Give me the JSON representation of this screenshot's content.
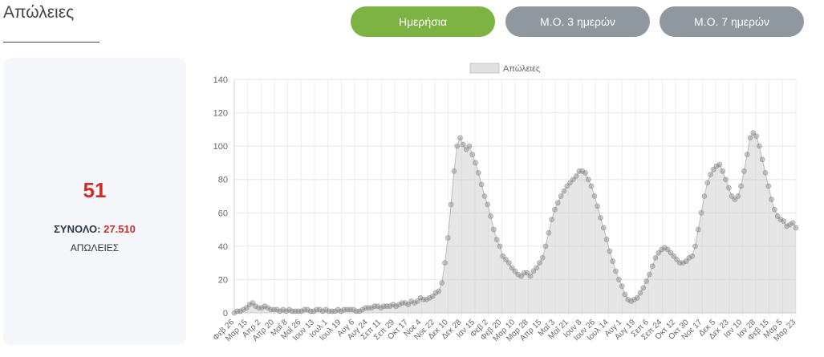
{
  "header": {
    "title": "Απώλειες"
  },
  "buttons": {
    "daily": "Ημερήσια",
    "ma3": "Μ.Ο. 3 ημερών",
    "ma7": "Μ.Ο. 7 ημερών"
  },
  "summary": {
    "value": "51",
    "total_label": "ΣΥΝΟΛΟ:",
    "total_value": "27.510",
    "sub_label": "ΑΠΩΛΕΙΕΣ"
  },
  "colors": {
    "active_button": "#7cb342",
    "inactive_button": "#8f979f",
    "highlight": "#c9302c"
  },
  "chart_data": {
    "type": "line",
    "title": "",
    "xlabel": "",
    "ylabel": "",
    "legend": {
      "label": "Απώλειες",
      "position": "top"
    },
    "ylim": [
      0,
      140
    ],
    "yticks": [
      0,
      20,
      40,
      60,
      80,
      100,
      120,
      140
    ],
    "grid": true,
    "tick_labels": [
      "Φεβ 26",
      "Μαρ 15",
      "Απρ 2",
      "Απρ 20",
      "Μαΐ 8",
      "Μαΐ 26",
      "Ιουν 13",
      "Ιουλ 1",
      "Ιουλ 19",
      "Αυγ 6",
      "Αυγ 24",
      "Σεπ 11",
      "Σεπ 29",
      "Οκτ 17",
      "Νοε 4",
      "Νοε 22",
      "Δεκ 10",
      "Δεκ 28",
      "Ιαν 15",
      "Φεβ 2",
      "Φεβ 20",
      "Μαρ 10",
      "Μαρ 28",
      "Απρ 15",
      "Μαΐ 3",
      "Μαΐ 21",
      "Ιουν 8",
      "Ιουν 26",
      "Ιουλ 14",
      "Αυγ 1",
      "Αυγ 19",
      "Σεπ 6",
      "Σεπ 24",
      "Οκτ 12",
      "Οκτ 30",
      "Νοε 17",
      "Δεκ 5",
      "Δεκ 23",
      "Ιαν 10",
      "Ιαν 28",
      "Φεβ 15",
      "Μαρ 5",
      "Μαρ 23"
    ],
    "series": [
      {
        "name": "Απώλειες",
        "values": [
          0,
          1,
          1,
          2,
          3,
          5,
          6,
          4,
          3,
          3,
          4,
          3,
          2,
          2,
          2,
          1,
          2,
          1,
          2,
          1,
          1,
          1,
          1,
          2,
          2,
          1,
          1,
          2,
          2,
          1,
          2,
          1,
          1,
          1,
          2,
          1,
          2,
          2,
          2,
          2,
          1,
          1,
          2,
          3,
          3,
          3,
          4,
          4,
          3,
          4,
          4,
          4,
          5,
          4,
          5,
          6,
          6,
          5,
          7,
          6,
          7,
          9,
          8,
          8,
          9,
          10,
          12,
          13,
          18,
          30,
          45,
          65,
          85,
          100,
          105,
          101,
          98,
          100,
          95,
          90,
          84,
          77,
          70,
          65,
          58,
          50,
          44,
          40,
          34,
          32,
          30,
          27,
          25,
          23,
          22,
          24,
          24,
          22,
          25,
          27,
          30,
          33,
          40,
          48,
          56,
          62,
          66,
          70,
          73,
          76,
          78,
          80,
          82,
          85,
          85,
          84,
          80,
          76,
          70,
          64,
          57,
          51,
          44,
          37,
          31,
          25,
          20,
          16,
          11,
          8,
          7,
          8,
          9,
          12,
          15,
          19,
          23,
          28,
          33,
          36,
          38,
          39,
          38,
          36,
          34,
          32,
          30,
          30,
          31,
          33,
          34,
          40,
          50,
          60,
          70,
          78,
          83,
          86,
          88,
          89,
          85,
          80,
          75,
          70,
          68,
          70,
          76,
          85,
          95,
          105,
          108,
          106,
          100,
          92,
          84,
          76,
          68,
          62,
          58,
          56,
          55,
          52,
          53,
          54,
          51
        ]
      }
    ]
  }
}
